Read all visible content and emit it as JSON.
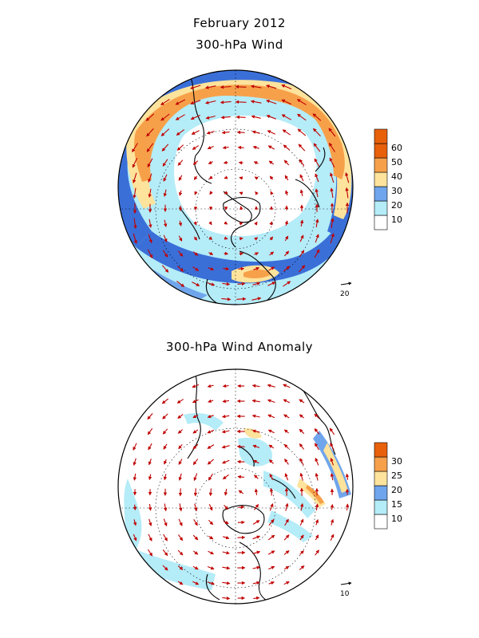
{
  "header": {
    "title": "February 2012",
    "panel1_title": "300-hPa Wind",
    "panel2_title": "300-hPa Wind Anomaly"
  },
  "panel1": {
    "legend": {
      "labels": [
        "10",
        "20",
        "30",
        "40",
        "50",
        "60"
      ],
      "colors": [
        "#ffffff",
        "#b4ecf8",
        "#6fa5ec",
        "#3a6fd8",
        "#fde39c",
        "#f7a04a",
        "#e8600a"
      ]
    },
    "reference_vector": "20"
  },
  "panel2": {
    "legend": {
      "labels": [
        "10",
        "15",
        "20",
        "25",
        "30"
      ],
      "colors": [
        "#ffffff",
        "#b4ecf8",
        "#6fa5ec",
        "#3a6fd8",
        "#fde39c",
        "#f7a04a",
        "#e8600a"
      ]
    },
    "reference_vector": "10"
  },
  "colors": {
    "arrow": "#c00000",
    "land": "#000000",
    "grid": "#000000"
  }
}
